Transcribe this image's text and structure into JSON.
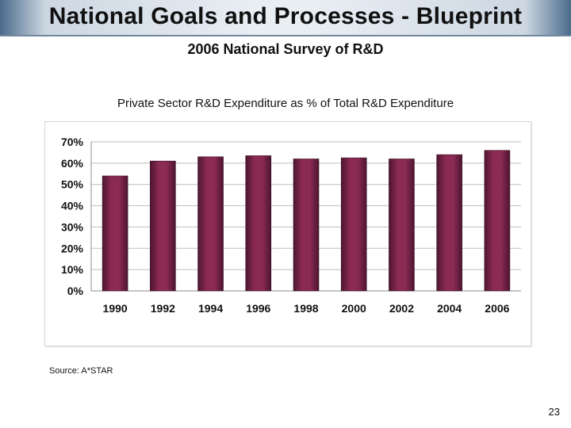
{
  "slide": {
    "title": "National Goals and Processes - Blueprint",
    "subtitle": "2006 National Survey of R&D",
    "source": "Source: A*STAR",
    "page_number": "23"
  },
  "colors": {
    "bar_fill": "#8b2a52",
    "bar_shadow": "#4d1630",
    "gridline": "#bfbfbf"
  },
  "chart_data": {
    "type": "bar",
    "title": "Private Sector R&D Expenditure as % of Total R&D Expenditure",
    "xlabel": "",
    "ylabel": "",
    "categories": [
      "1990",
      "1992",
      "1994",
      "1996",
      "1998",
      "2000",
      "2002",
      "2004",
      "2006"
    ],
    "values": [
      54,
      61,
      63,
      63.5,
      62,
      62.5,
      62,
      64,
      66
    ],
    "ylim": [
      0,
      70
    ],
    "yticks": [
      "0%",
      "10%",
      "20%",
      "30%",
      "40%",
      "50%",
      "60%",
      "70%"
    ],
    "grid": true,
    "legend": "none"
  }
}
